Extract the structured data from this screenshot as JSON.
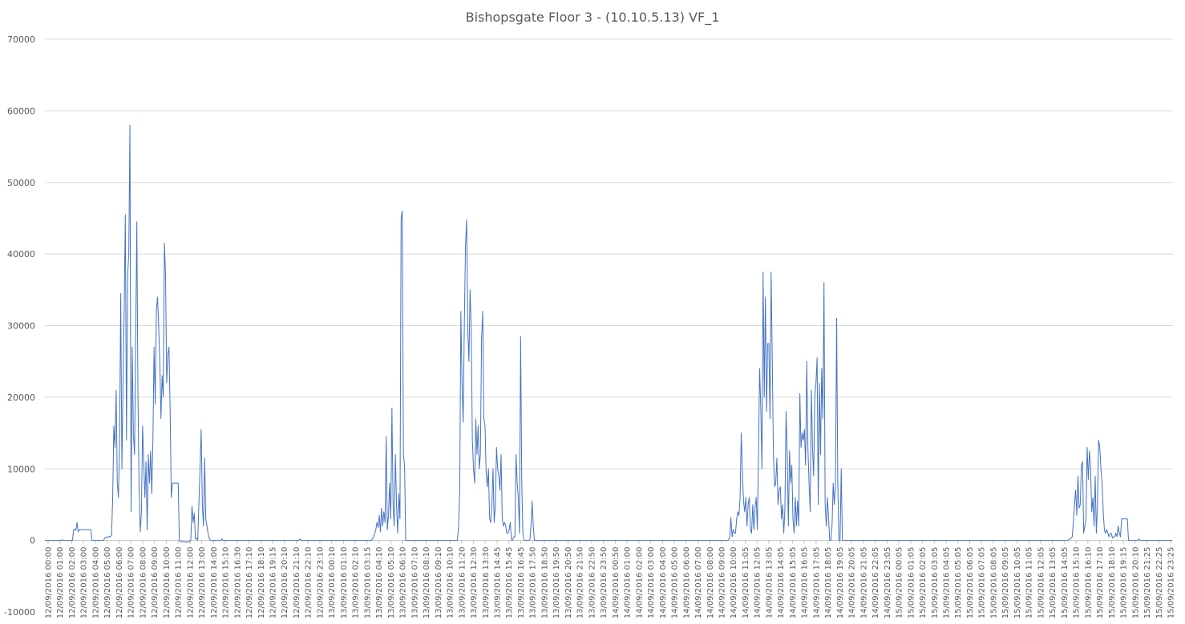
{
  "chart_data": {
    "type": "line",
    "title": "Bishopsgate Floor 3 - (10.10.5.13) VF_1",
    "xlabel": "",
    "ylabel": "",
    "ylim": [
      -10000,
      70000
    ],
    "yticks": [
      -10000,
      0,
      10000,
      20000,
      30000,
      40000,
      50000,
      60000,
      70000
    ],
    "grid": true,
    "legend": "none",
    "line_color": "#4472c4",
    "x_tick_labels": [
      "12/09/2016 00:00",
      "12/09/2016 01:00",
      "12/09/2016 02:00",
      "12/09/2016 03:00",
      "12/09/2016 04:00",
      "12/09/2016 05:00",
      "12/09/2016 06:00",
      "12/09/2016 07:00",
      "12/09/2016 08:00",
      "12/09/2016 09:00",
      "12/09/2016 10:00",
      "12/09/2016 11:00",
      "12/09/2016 12:00",
      "12/09/2016 13:00",
      "12/09/2016 14:00",
      "12/09/2016 15:10",
      "12/09/2016 16:30",
      "12/09/2016 17:10",
      "12/09/2016 18:10",
      "12/09/2016 19:15",
      "12/09/2016 20:10",
      "12/09/2016 21:10",
      "12/09/2016 22:10",
      "12/09/2016 23:10",
      "13/09/2016 00:10",
      "13/09/2016 01:10",
      "13/09/2016 02:10",
      "13/09/2016 03:15",
      "13/09/2016 04:10",
      "13/09/2016 05:10",
      "13/09/2016 06:10",
      "13/09/2016 07:10",
      "13/09/2016 08:10",
      "13/09/2016 09:10",
      "13/09/2016 10:10",
      "13/09/2016 11:20",
      "13/09/2016 12:30",
      "13/09/2016 13:30",
      "13/09/2016 14:45",
      "13/09/2016 15:45",
      "13/09/2016 16:45",
      "13/09/2016 17:50",
      "13/09/2016 18:50",
      "13/09/2016 19:50",
      "13/09/2016 20:50",
      "13/09/2016 21:50",
      "13/09/2016 22:50",
      "13/09/2016 23:50",
      "14/09/2016 00:50",
      "14/09/2016 01:00",
      "14/09/2016 02:00",
      "14/09/2016 03:00",
      "14/09/2016 04:00",
      "14/09/2016 05:00",
      "14/09/2016 06:00",
      "14/09/2016 07:00",
      "14/09/2016 08:00",
      "14/09/2016 09:00",
      "14/09/2016 10:00",
      "14/09/2016 11:05",
      "14/09/2016 12:05",
      "14/09/2016 13:05",
      "14/09/2016 14:05",
      "14/09/2016 15:05",
      "14/09/2016 16:05",
      "14/09/2016 17:05",
      "14/09/2016 18:05",
      "14/09/2016 19:05",
      "14/09/2016 20:05",
      "14/09/2016 21:05",
      "14/09/2016 22:05",
      "14/09/2016 23:05",
      "15/09/2016 00:05",
      "15/09/2016 01:05",
      "15/09/2016 02:05",
      "15/09/2016 03:05",
      "15/09/2016 04:05",
      "15/09/2016 05:05",
      "15/09/2016 06:05",
      "15/09/2016 07:05",
      "15/09/2016 08:05",
      "15/09/2016 09:05",
      "15/09/2016 10:05",
      "15/09/2016 11:05",
      "15/09/2016 12:05",
      "15/09/2016 13:05",
      "15/09/2016 14:05",
      "15/09/2016 15:10",
      "15/09/2016 16:10",
      "15/09/2016 17:10",
      "15/09/2016 18:10",
      "15/09/2016 19:15",
      "15/09/2016 20:10",
      "15/09/2016 21:25",
      "15/09/2016 22:25",
      "15/09/2016 23:25"
    ],
    "series": [
      {
        "values": [
          0,
          0,
          0,
          0,
          0,
          0,
          0,
          0,
          0,
          0,
          0,
          0,
          0,
          0,
          0,
          100,
          0,
          0,
          0,
          0,
          0,
          0,
          0,
          0,
          0,
          1500,
          1600,
          1400,
          2500,
          1200,
          1500,
          1500,
          1500,
          1500,
          1500,
          1500,
          1500,
          1500,
          1500,
          1500,
          1500,
          0,
          0,
          0,
          0,
          0,
          0,
          0,
          0,
          0,
          0,
          0,
          300,
          400,
          500,
          400,
          600,
          500,
          700,
          6000,
          16000,
          13000,
          21000,
          8000,
          6000,
          14000,
          34500,
          10000,
          22000,
          32000,
          45500,
          14000,
          37000,
          40000,
          58000,
          4000,
          27000,
          15000,
          12000,
          28000,
          44500,
          20000,
          7000,
          1200,
          4000,
          16000,
          11000,
          6000,
          11000,
          1500,
          12000,
          8000,
          12500,
          6500,
          14000,
          27000,
          19000,
          32000,
          34000,
          30000,
          25000,
          17000,
          23000,
          20000,
          41500,
          37000,
          22000,
          26000,
          27000,
          18000,
          6000,
          8000,
          8000,
          8000,
          8000,
          8000,
          8000,
          0,
          -200,
          -200,
          -200,
          -200,
          -200,
          -300,
          -200,
          -200,
          -200,
          100,
          4800,
          2500,
          3800,
          200,
          300,
          0,
          5000,
          10000,
          15500,
          5000,
          2000,
          11500,
          3000,
          2000,
          1000,
          300,
          0,
          0,
          0,
          0,
          0,
          0,
          0,
          0,
          0,
          0,
          200,
          0,
          0,
          0,
          0,
          0,
          0,
          0,
          0,
          0,
          0,
          0,
          0,
          0,
          0,
          0,
          0,
          0,
          0,
          0,
          0,
          0,
          0,
          0,
          0,
          0,
          0,
          0,
          0,
          0,
          0,
          0,
          0,
          0,
          0,
          0,
          0,
          0,
          0,
          0,
          0,
          0,
          0,
          0,
          0,
          0,
          0,
          0,
          0,
          0,
          0,
          0,
          0,
          0,
          0,
          0,
          0,
          0,
          0,
          0,
          0,
          0,
          0,
          0,
          0,
          0,
          0,
          0,
          200,
          0,
          0,
          0,
          0,
          0,
          0,
          0,
          0,
          0,
          0,
          0,
          0,
          0,
          0,
          0,
          0,
          0,
          0,
          0,
          0,
          0,
          0,
          0,
          0,
          0,
          0,
          0,
          0,
          0,
          0,
          0,
          0,
          0,
          0,
          0,
          0,
          0,
          0,
          0,
          0,
          0,
          0,
          0,
          0,
          0,
          0,
          0,
          0,
          0,
          0,
          0,
          0,
          0,
          0,
          0,
          0,
          0,
          0,
          0,
          0,
          0,
          0,
          200,
          500,
          1000,
          1500,
          2500,
          1800,
          3500,
          1200,
          4500,
          2000,
          4000,
          2500,
          14500,
          1500,
          3500,
          8000,
          3000,
          18500,
          5000,
          2000,
          12000,
          5000,
          1000,
          6500,
          3000,
          45000,
          46000,
          12000,
          10500,
          0,
          0,
          0,
          0,
          0,
          0,
          0,
          0,
          0,
          0,
          0,
          0,
          0,
          0,
          0,
          0,
          0,
          0,
          0,
          0,
          0,
          0,
          0,
          0,
          0,
          0,
          0,
          0,
          0,
          0,
          0,
          0,
          0,
          0,
          0,
          0,
          0,
          0,
          0,
          0,
          0,
          0,
          0,
          0,
          0,
          0,
          2000,
          7000,
          32000,
          22000,
          16500,
          30000,
          41000,
          44800,
          29500,
          25000,
          35000,
          29500,
          14000,
          10000,
          8000,
          17000,
          12000,
          16000,
          10000,
          12000,
          28000,
          32000,
          17000,
          16000,
          9500,
          7500,
          10000,
          3000,
          2500,
          5000,
          10000,
          2500,
          5000,
          13000,
          10000,
          9000,
          7000,
          12000,
          3000,
          2000,
          2500,
          2000,
          1000,
          1000,
          1500,
          2500,
          0,
          0,
          500,
          500,
          12000,
          8000,
          6000,
          1000,
          28500,
          8000,
          1000,
          0,
          0,
          0,
          0,
          0,
          0,
          2000,
          5500,
          2000,
          0,
          0,
          0,
          0,
          0,
          0,
          0,
          0,
          0,
          0,
          0,
          0,
          0,
          0,
          0,
          0,
          0,
          0,
          0,
          0,
          0,
          0,
          0,
          0,
          0,
          0,
          0,
          0,
          0,
          0,
          0,
          0,
          0,
          0,
          0,
          0,
          0,
          0,
          0,
          0,
          0,
          0,
          0,
          0,
          0,
          0,
          0,
          0,
          0,
          0,
          0,
          0,
          0,
          0,
          0,
          0,
          0,
          0,
          0,
          0,
          0,
          0,
          0,
          0,
          0,
          0,
          0,
          0,
          0,
          0,
          0,
          0,
          0,
          0,
          0,
          0,
          0,
          0,
          0,
          0,
          0,
          0,
          0,
          0,
          0,
          0,
          0,
          0,
          0,
          0,
          0,
          0,
          0,
          0,
          0,
          0,
          0,
          0,
          0,
          0,
          0,
          0,
          0,
          0,
          0,
          0,
          0,
          0,
          0,
          0,
          0,
          0,
          0,
          0,
          0,
          0,
          0,
          0,
          0,
          0,
          0,
          0,
          0,
          0,
          0,
          0,
          0,
          0,
          0,
          0,
          0,
          0,
          0,
          0,
          0,
          0,
          0,
          0,
          0,
          0,
          0,
          0,
          0,
          0,
          0,
          0,
          0,
          0,
          0,
          0,
          0,
          0,
          0,
          0,
          0,
          0,
          0,
          0,
          0,
          0,
          0,
          0,
          0,
          0,
          0,
          0,
          0,
          0,
          0,
          100,
          500,
          3200,
          500,
          1500,
          1000,
          1000,
          3000,
          4000,
          3500,
          6000,
          15000,
          9500,
          5500,
          4000,
          6000,
          2000,
          5000,
          6000,
          1500,
          1000,
          5000,
          1500,
          4500,
          6000,
          1500,
          12000,
          24000,
          18500,
          10000,
          37500,
          20000,
          34000,
          18000,
          27500,
          27500,
          17000,
          37500,
          25000,
          12000,
          7500,
          8000,
          11500,
          5000,
          7000,
          7500,
          3000,
          5000,
          1000,
          4500,
          18000,
          12000,
          2000,
          12500,
          8000,
          10500,
          3000,
          1000,
          6000,
          2000,
          5500,
          2000,
          20500,
          13000,
          15000,
          14000,
          15500,
          10500,
          25000,
          13000,
          8000,
          4000,
          21000,
          13000,
          9000,
          20000,
          22000,
          25500,
          5000,
          22000,
          12000,
          24000,
          17000,
          36000,
          5000,
          2000,
          6000,
          3000,
          0,
          0,
          2000,
          8000,
          5000,
          8000,
          31000,
          8000,
          0,
          0,
          10000,
          0,
          0,
          0,
          0,
          0,
          0,
          0,
          0,
          0,
          0,
          0,
          0,
          0,
          0,
          0,
          0,
          0,
          0,
          0,
          0,
          0,
          0,
          0,
          0,
          0,
          0,
          0,
          0,
          0,
          0,
          0,
          0,
          0,
          0,
          0,
          0,
          0,
          0,
          0,
          0,
          0,
          0,
          0,
          0,
          0,
          0,
          0,
          0,
          0,
          0,
          0,
          0,
          0,
          0,
          0,
          0,
          0,
          0,
          0,
          0,
          0,
          0,
          0,
          0,
          0,
          0,
          0,
          0,
          0,
          0,
          0,
          0,
          0,
          0,
          0,
          0,
          0,
          0,
          0,
          0,
          0,
          0,
          0,
          0,
          0,
          0,
          0,
          0,
          0,
          0,
          0,
          0,
          0,
          0,
          0,
          0,
          0,
          0,
          0,
          0,
          0,
          0,
          0,
          0,
          0,
          0,
          0,
          0,
          0,
          0,
          0,
          0,
          0,
          0,
          0,
          0,
          0,
          0,
          0,
          0,
          0,
          0,
          0,
          0,
          0,
          0,
          0,
          0,
          0,
          0,
          0,
          0,
          0,
          0,
          0,
          0,
          0,
          0,
          0,
          0,
          0,
          0,
          0,
          0,
          0,
          0,
          0,
          0,
          0,
          0,
          0,
          0,
          0,
          0,
          0,
          0,
          0,
          0,
          0,
          0,
          0,
          0,
          0,
          0,
          0,
          0,
          0,
          0,
          0,
          0,
          0,
          0,
          0,
          0,
          0,
          0,
          0,
          0,
          0,
          0,
          0,
          0,
          0,
          0,
          0,
          0,
          0,
          0,
          0,
          0,
          0,
          0,
          0,
          0,
          0,
          0,
          0,
          100,
          200,
          300,
          500,
          2500,
          5000,
          7000,
          3500,
          9000,
          4500,
          5000,
          10500,
          11000,
          1000,
          2000,
          3000,
          13000,
          8500,
          12500,
          10000,
          4000,
          6000,
          2000,
          9000,
          1000,
          5000,
          14000,
          13000,
          10000,
          8000,
          4000,
          1500,
          1000,
          1500,
          1000,
          500,
          1000,
          1000,
          300,
          500,
          500,
          1000,
          500,
          2000,
          1000,
          500,
          3000,
          3000,
          3000,
          3000,
          3000,
          3000,
          0,
          0,
          0,
          0,
          0,
          0,
          0,
          0,
          0,
          200,
          0,
          0,
          0,
          0,
          0,
          0,
          0,
          0,
          0,
          0,
          0,
          0,
          0,
          0,
          0,
          0,
          0,
          0,
          0,
          0,
          0,
          0,
          0,
          0,
          0,
          0,
          0,
          0,
          0
        ]
      }
    ]
  }
}
